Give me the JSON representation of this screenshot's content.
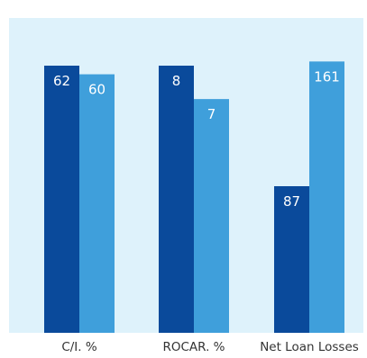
{
  "chart_data": {
    "type": "bar",
    "categories": [
      "C/I. %",
      "ROCAR. %",
      "Net Loan Losses"
    ],
    "series": [
      {
        "values": [
          62,
          8,
          87
        ],
        "color": "#0a4a9b"
      },
      {
        "values": [
          60,
          7,
          161
        ],
        "color": "#3f9fdb"
      }
    ],
    "background_color": "#def2fb",
    "label_color": "#ffffff",
    "tick_label_color": "#333333",
    "grid": false,
    "legend": false
  }
}
